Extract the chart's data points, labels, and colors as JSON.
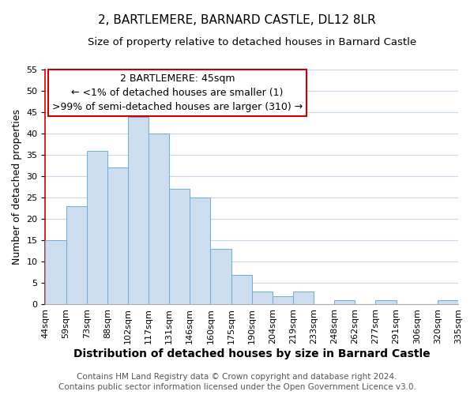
{
  "title": "2, BARTLEMERE, BARNARD CASTLE, DL12 8LR",
  "subtitle": "Size of property relative to detached houses in Barnard Castle",
  "xlabel": "Distribution of detached houses by size in Barnard Castle",
  "ylabel": "Number of detached properties",
  "bar_values": [
    15,
    23,
    36,
    32,
    44,
    40,
    27,
    25,
    13,
    7,
    3,
    2,
    3,
    0,
    1,
    0,
    1,
    0,
    0,
    1
  ],
  "bin_labels": [
    "44sqm",
    "59sqm",
    "73sqm",
    "88sqm",
    "102sqm",
    "117sqm",
    "131sqm",
    "146sqm",
    "160sqm",
    "175sqm",
    "190sqm",
    "204sqm",
    "219sqm",
    "233sqm",
    "248sqm",
    "262sqm",
    "277sqm",
    "291sqm",
    "306sqm",
    "320sqm",
    "335sqm"
  ],
  "bar_color": "#cdddf0",
  "bar_edge_color": "#6baed6",
  "ylim": [
    0,
    55
  ],
  "yticks": [
    0,
    5,
    10,
    15,
    20,
    25,
    30,
    35,
    40,
    45,
    50,
    55
  ],
  "annotation_title": "2 BARTLEMERE: 45sqm",
  "annotation_line1": "← <1% of detached houses are smaller (1)",
  "annotation_line2": ">99% of semi-detached houses are larger (310) →",
  "annotation_box_color": "#ffffff",
  "annotation_box_edge": "#cc0000",
  "footer_line1": "Contains HM Land Registry data © Crown copyright and database right 2024.",
  "footer_line2": "Contains public sector information licensed under the Open Government Licence v3.0.",
  "background_color": "#ffffff",
  "grid_color": "#c8d8e8",
  "title_fontsize": 11,
  "subtitle_fontsize": 9.5,
  "xlabel_fontsize": 10,
  "ylabel_fontsize": 9,
  "tick_fontsize": 8,
  "annotation_fontsize": 9,
  "footer_fontsize": 7.5,
  "left_spine_color": "#cc0000"
}
